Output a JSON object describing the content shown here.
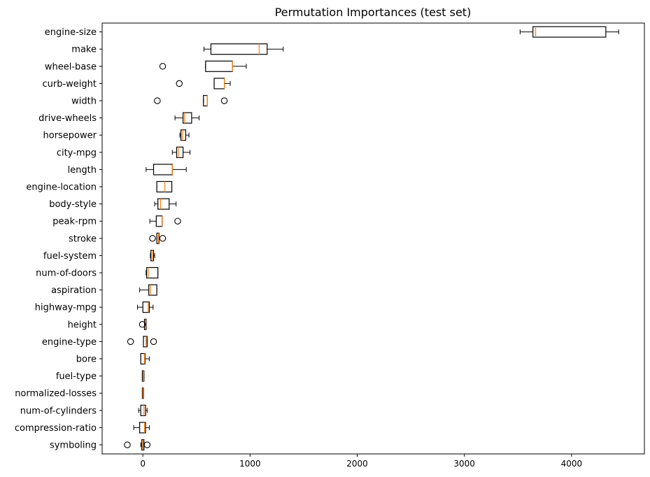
{
  "chart_data": {
    "type": "boxplot",
    "orientation": "horizontal",
    "title": "Permutation Importances (test set)",
    "xlabel": "",
    "ylabel": "",
    "xlim": [
      -380,
      4680
    ],
    "xticks": [
      0,
      1000,
      2000,
      3000,
      4000
    ],
    "grid": false,
    "colors": {
      "box": "#000000",
      "median": "#ff7f0e",
      "background": "#ffffff"
    },
    "categories": [
      "engine-size",
      "make",
      "wheel-base",
      "curb-weight",
      "width",
      "drive-wheels",
      "horsepower",
      "city-mpg",
      "length",
      "engine-location",
      "body-style",
      "peak-rpm",
      "stroke",
      "fuel-system",
      "num-of-doors",
      "aspiration",
      "highway-mpg",
      "height",
      "engine-type",
      "bore",
      "fuel-type",
      "normalized-losses",
      "num-of-cylinders",
      "compression-ratio",
      "symboling"
    ],
    "boxes": [
      {
        "whisker_low": 3520,
        "q1": 3640,
        "median": 3665,
        "q3": 4320,
        "whisker_high": 4440,
        "fliers": []
      },
      {
        "whisker_low": 570,
        "q1": 635,
        "median": 1085,
        "q3": 1160,
        "whisker_high": 1310,
        "fliers": []
      },
      {
        "whisker_low": 585,
        "q1": 585,
        "median": 835,
        "q3": 835,
        "whisker_high": 965,
        "fliers": [
          185
        ]
      },
      {
        "whisker_low": 665,
        "q1": 665,
        "median": 760,
        "q3": 760,
        "whisker_high": 815,
        "fliers": [
          340
        ]
      },
      {
        "whisker_low": 565,
        "q1": 565,
        "median": 600,
        "q3": 600,
        "whisker_high": 600,
        "fliers": [
          135,
          760
        ]
      },
      {
        "whisker_low": 300,
        "q1": 375,
        "median": 390,
        "q3": 455,
        "whisker_high": 525,
        "fliers": []
      },
      {
        "whisker_low": 345,
        "q1": 355,
        "median": 370,
        "q3": 400,
        "whisker_high": 430,
        "fliers": []
      },
      {
        "whisker_low": 275,
        "q1": 315,
        "median": 330,
        "q3": 375,
        "whisker_high": 440,
        "fliers": []
      },
      {
        "whisker_low": 30,
        "q1": 100,
        "median": 275,
        "q3": 275,
        "whisker_high": 405,
        "fliers": []
      },
      {
        "whisker_low": 130,
        "q1": 130,
        "median": 205,
        "q3": 270,
        "whisker_high": 270,
        "fliers": []
      },
      {
        "whisker_low": 110,
        "q1": 140,
        "median": 165,
        "q3": 245,
        "whisker_high": 310,
        "fliers": []
      },
      {
        "whisker_low": 65,
        "q1": 125,
        "median": 180,
        "q3": 180,
        "whisker_high": 180,
        "fliers": [
          325
        ]
      },
      {
        "whisker_low": 130,
        "q1": 130,
        "median": 145,
        "q3": 150,
        "whisker_high": 150,
        "fliers": [
          90,
          185
        ]
      },
      {
        "whisker_low": 70,
        "q1": 75,
        "median": 90,
        "q3": 100,
        "whisker_high": 110,
        "fliers": []
      },
      {
        "whisker_low": 30,
        "q1": 35,
        "median": 50,
        "q3": 140,
        "whisker_high": 140,
        "fliers": []
      },
      {
        "whisker_low": -30,
        "q1": 55,
        "median": 70,
        "q3": 130,
        "whisker_high": 130,
        "fliers": []
      },
      {
        "whisker_low": -50,
        "q1": 0,
        "median": 50,
        "q3": 60,
        "whisker_high": 95,
        "fliers": []
      },
      {
        "whisker_low": 15,
        "q1": 15,
        "median": 25,
        "q3": 30,
        "whisker_high": 30,
        "fliers": [
          -5
        ]
      },
      {
        "whisker_low": 5,
        "q1": 5,
        "median": 30,
        "q3": 40,
        "whisker_high": 40,
        "fliers": [
          -115,
          100
        ]
      },
      {
        "whisker_low": -20,
        "q1": -20,
        "median": 15,
        "q3": 20,
        "whisker_high": 60,
        "fliers": []
      },
      {
        "whisker_low": -5,
        "q1": -5,
        "median": 5,
        "q3": 10,
        "whisker_high": 10,
        "fliers": []
      },
      {
        "whisker_low": -5,
        "q1": -5,
        "median": 0,
        "q3": 5,
        "whisker_high": 5,
        "fliers": []
      },
      {
        "whisker_low": -40,
        "q1": -20,
        "median": 10,
        "q3": 25,
        "whisker_high": 40,
        "fliers": []
      },
      {
        "whisker_low": -85,
        "q1": -30,
        "median": 15,
        "q3": 25,
        "whisker_high": 60,
        "fliers": []
      },
      {
        "whisker_low": -20,
        "q1": -10,
        "median": 0,
        "q3": 10,
        "whisker_high": 10,
        "fliers": [
          -145,
          40
        ]
      }
    ]
  }
}
